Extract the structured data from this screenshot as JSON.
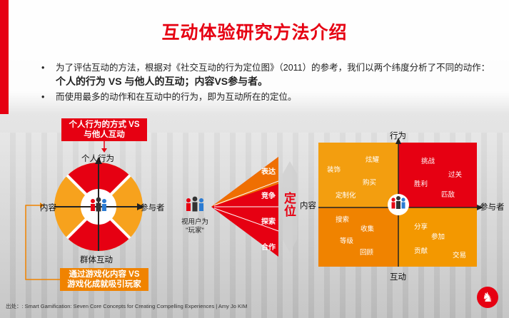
{
  "title": "互动体验研究方法介绍",
  "bullets": [
    {
      "pre": "为了评估互动的方法，根据对《社交互动的行为定位图》（2011）的参考，我们以两个纬度分析了不同的动作：",
      "emphasis": "个人的行为 VS 与他人的互动；内容VS参与者。"
    },
    {
      "pre": "而使用最多的动作和在互动中的行为，即为互动所在的定位。",
      "emphasis": ""
    }
  ],
  "left_diagram": {
    "top_box_line1": "个人行为的方式 VS",
    "top_box_line2": "与他人互动",
    "axis_top": "个人行为",
    "axis_bottom": "群体互动",
    "axis_left": "内容",
    "axis_right": "参与者",
    "bottom_box_line1": "通过游戏化内容 VS",
    "bottom_box_line2": "游戏化成就吸引玩家",
    "colors": {
      "red": "#e60012",
      "orange": "#f7a21d"
    }
  },
  "middle": {
    "caption_line1": "视用户为",
    "caption_line2": "\"玩家\"",
    "funnel_labels": [
      "表达",
      "竞争",
      "探索",
      "合作"
    ],
    "position_label_1": "定",
    "position_label_2": "位"
  },
  "right_diagram": {
    "axis_top": "行为",
    "axis_bottom": "互动",
    "axis_left": "内容",
    "axis_right": "参与者",
    "top_left": [
      "炫耀",
      "装饰",
      "购买",
      "定制化"
    ],
    "top_right": [
      "挑战",
      "过关",
      "胜利",
      "匹敌"
    ],
    "bottom_left": [
      "搜索",
      "收集",
      "等级",
      "回顾"
    ],
    "bottom_right": [
      "分享",
      "参加",
      "贡献",
      "交易"
    ],
    "colors": {
      "orange": "#f39800",
      "red": "#e60012"
    }
  },
  "footer": "出处：: Smart Gamification: Seven Core Concepts for Creating Compelling Experiences | Amy Jo KIM"
}
